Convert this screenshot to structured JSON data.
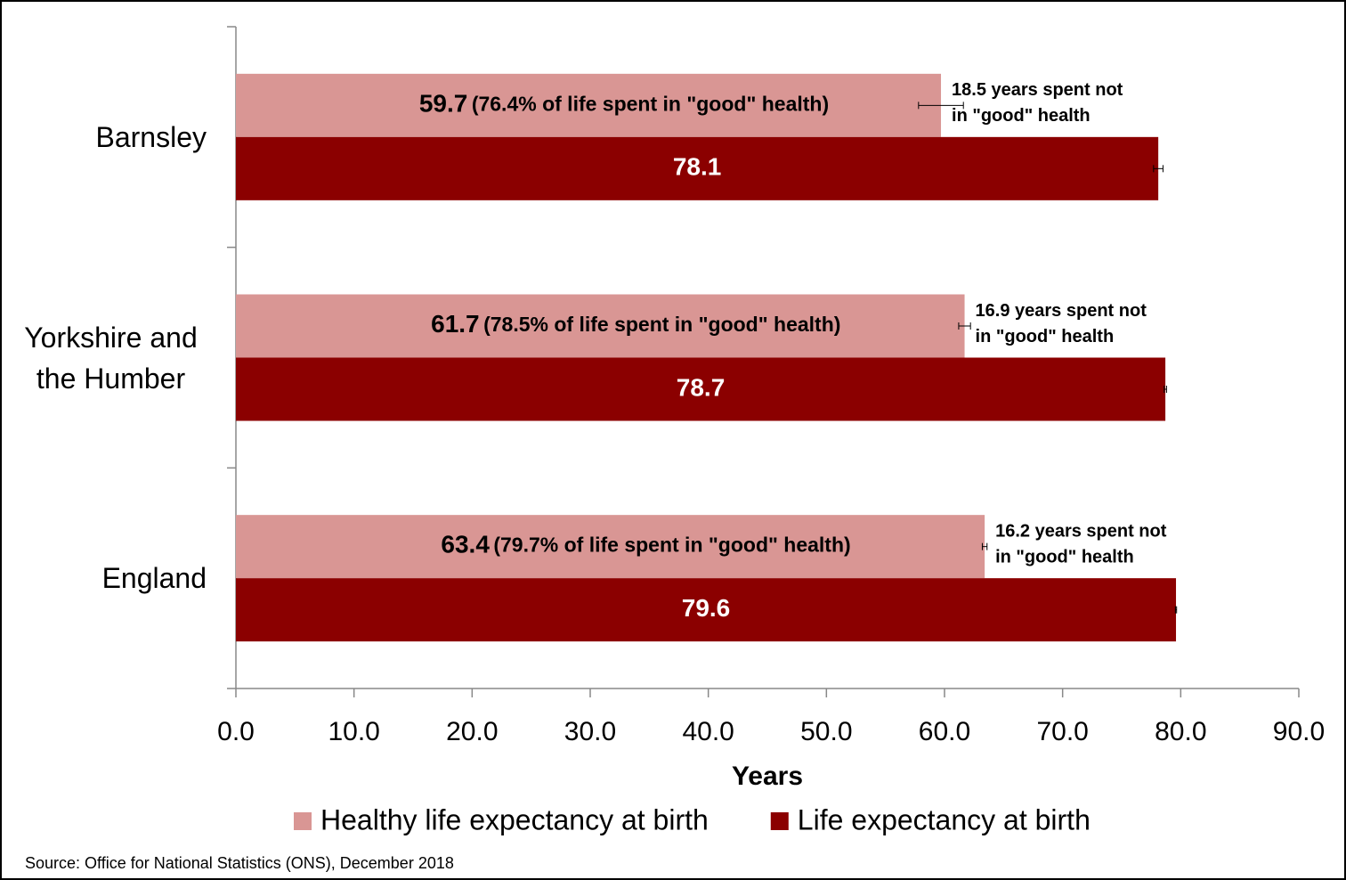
{
  "chart_data": {
    "type": "hbar",
    "categories": [
      "Barnsley",
      "Yorkshire and the Humber",
      "England"
    ],
    "series": [
      {
        "name": "Healthy life expectancy at birth",
        "color": "#d99694",
        "values": [
          59.7,
          61.7,
          63.4
        ],
        "errors": [
          1.9,
          0.5,
          0.2
        ],
        "share_labels": [
          "(76.4% of life spent in \"good\" health)",
          "(78.5% of life spent in \"good\" health)",
          "(79.7% of life spent in \"good\" health)"
        ],
        "gap_labels": [
          [
            "18.5 years spent not",
            "in \"good\" health"
          ],
          [
            "16.9 years spent not",
            "in \"good\" health"
          ],
          [
            "16.2 years spent not",
            "in \"good\" health"
          ]
        ]
      },
      {
        "name": "Life expectancy at birth",
        "color": "#8b0000",
        "values": [
          78.1,
          78.7,
          79.6
        ],
        "errors": [
          0.4,
          0.1,
          0.05
        ]
      }
    ],
    "xlabel": "Years",
    "xlim": [
      0,
      90
    ],
    "xticks": [
      {
        "value": 0,
        "label": "0.0"
      },
      {
        "value": 10,
        "label": "10.0"
      },
      {
        "value": 20,
        "label": "20.0"
      },
      {
        "value": 30,
        "label": "30.0"
      },
      {
        "value": 40,
        "label": "40.0"
      },
      {
        "value": 50,
        "label": "50.0"
      },
      {
        "value": 60,
        "label": "60.0"
      },
      {
        "value": 70,
        "label": "70.0"
      },
      {
        "value": 80,
        "label": "80.0"
      },
      {
        "value": 90,
        "label": "90.0"
      }
    ],
    "legend": "bottom",
    "source": "Source: Office for National Statistics (ONS), December 2018"
  }
}
